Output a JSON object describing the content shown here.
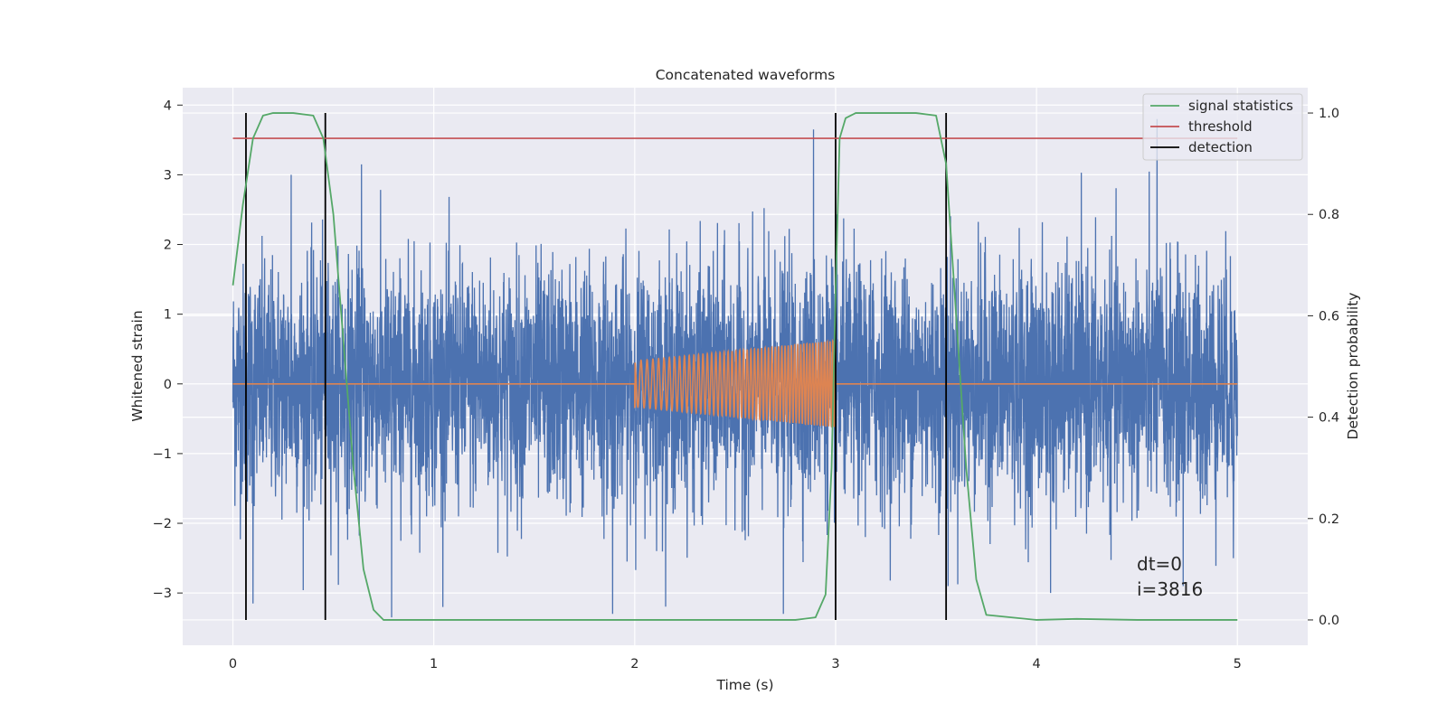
{
  "chart_data": {
    "type": "line",
    "title": "Concatenated waveforms",
    "xlabel": "Time (s)",
    "ylabel": "Whitened strain",
    "y2label": "Detection probability",
    "xlim": [
      -0.25,
      5.35
    ],
    "ylim": [
      -3.75,
      4.25
    ],
    "y2lim": [
      -0.05,
      1.05
    ],
    "xticks": [
      0,
      1,
      2,
      3,
      4,
      5
    ],
    "yticks": [
      -3,
      -2,
      -1,
      0,
      1,
      2,
      3,
      4
    ],
    "y2ticks": [
      0.0,
      0.2,
      0.4,
      0.6,
      0.8,
      1.0
    ],
    "grid": true,
    "legend_position": "top-right",
    "colors": {
      "strain": "#4c72b0",
      "template": "#dd8452",
      "signal_statistics": "#55a868",
      "threshold": "#c44e52",
      "detection": "#000000",
      "axes_bg": "#eaeaf2",
      "grid": "#ffffff"
    },
    "series": [
      {
        "key": "strain",
        "axis": "left",
        "description": "noisy whitened strain over 0–5 s, roughly Gaussian with std ~0.8, peaks up to ~3.6 and down to ~-3.4",
        "x_range": [
          0,
          5
        ],
        "spikes": [
          {
            "x": 0.1,
            "y": -3.15
          },
          {
            "x": 0.29,
            "y": 3.0
          },
          {
            "x": 0.64,
            "y": 3.15
          },
          {
            "x": 0.79,
            "y": -3.35
          },
          {
            "x": 1.89,
            "y": -3.3
          },
          {
            "x": 2.74,
            "y": 3.3
          },
          {
            "x": 2.74,
            "y": -3.3
          },
          {
            "x": 2.89,
            "y": 3.65
          },
          {
            "x": 3.56,
            "y": 3.9
          },
          {
            "x": 3.56,
            "y": -2.9
          },
          {
            "x": 4.07,
            "y": 3.2
          },
          {
            "x": 4.07,
            "y": -3.0
          },
          {
            "x": 4.6,
            "y": 3.8
          },
          {
            "x": 4.73,
            "y": -2.9
          },
          {
            "x": 4.98,
            "y": -2.5
          }
        ]
      },
      {
        "key": "template",
        "axis": "left",
        "description": "injected chirp waveform, zero outside [2, 3], amplitude grows from ~0.3 to ~0.6 with rising frequency",
        "chirp": {
          "t_start": 2.0,
          "t_end": 3.0,
          "amp_start": 0.33,
          "amp_end": 0.62,
          "cycles": 52
        }
      },
      {
        "key": "signal_statistics",
        "name": "signal statistics",
        "axis": "right",
        "x": [
          0.0,
          0.05,
          0.1,
          0.15,
          0.2,
          0.3,
          0.4,
          0.45,
          0.5,
          0.55,
          0.6,
          0.65,
          0.7,
          0.75,
          1.0,
          2.0,
          2.8,
          2.9,
          2.95,
          2.98,
          3.0,
          3.02,
          3.05,
          3.1,
          3.2,
          3.4,
          3.5,
          3.55,
          3.6,
          3.65,
          3.7,
          3.75,
          4.0,
          4.2,
          4.5,
          5.0
        ],
        "y": [
          0.66,
          0.82,
          0.95,
          0.995,
          1.0,
          1.0,
          0.995,
          0.95,
          0.8,
          0.55,
          0.3,
          0.1,
          0.02,
          0.0,
          0.0,
          0.0,
          0.0,
          0.005,
          0.05,
          0.3,
          0.65,
          0.95,
          0.99,
          1.0,
          1.0,
          1.0,
          0.995,
          0.9,
          0.6,
          0.3,
          0.08,
          0.01,
          0.0,
          0.002,
          0.0,
          0.0
        ]
      },
      {
        "key": "threshold",
        "name": "threshold",
        "axis": "right",
        "x": [
          0,
          5
        ],
        "y": [
          0.95,
          0.95
        ]
      },
      {
        "key": "detection",
        "name": "detection",
        "axis": "right",
        "type": "vlines",
        "x": [
          0.065,
          0.46,
          3.0,
          3.55
        ],
        "ymin": 0.0,
        "ymax": 1.0
      }
    ],
    "annotations": [
      "dt=0",
      "i=3816"
    ]
  }
}
